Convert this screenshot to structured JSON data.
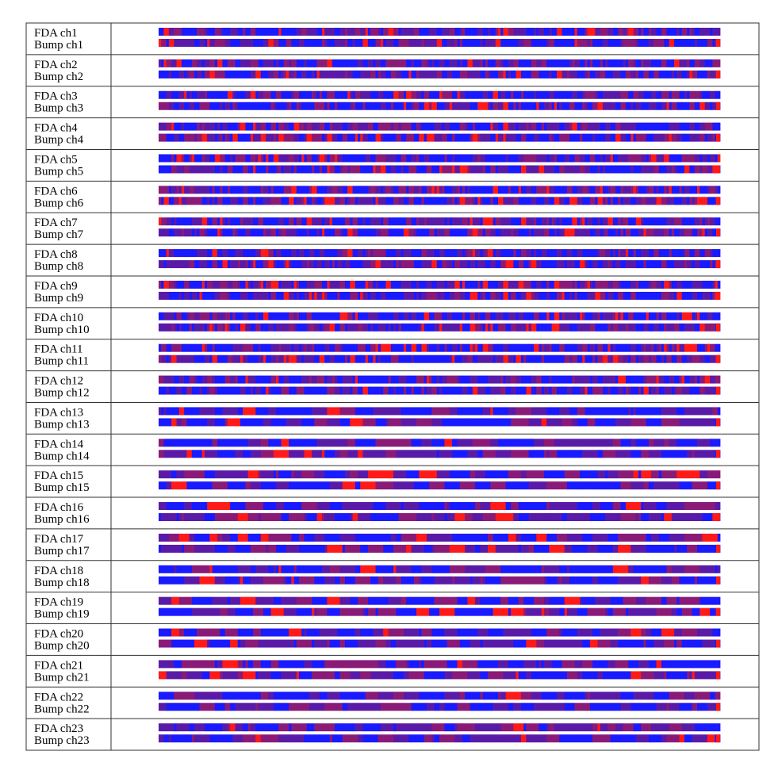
{
  "chart_data": {
    "type": "heatmap",
    "title": "",
    "xlabel": "",
    "ylabel": "",
    "colormap": [
      "#1a1aff",
      "#5a1aa8",
      "#8a1a78",
      "#ff1a1a"
    ],
    "colors": {
      "blue": "#1a1aff",
      "purple": "#5a1aa8",
      "magenta": "#8a1a78",
      "red": "#ff1a1a",
      "border": "#333333",
      "text": "#000000"
    },
    "groups": [
      {
        "fda_label": "FDA ch1",
        "bump_label": "Bump ch1"
      },
      {
        "fda_label": "FDA ch2",
        "bump_label": "Bump ch2"
      },
      {
        "fda_label": "FDA ch3",
        "bump_label": "Bump ch3"
      },
      {
        "fda_label": "FDA ch4",
        "bump_label": "Bump ch4"
      },
      {
        "fda_label": "FDA ch5",
        "bump_label": "Bump ch5"
      },
      {
        "fda_label": "FDA ch6",
        "bump_label": "Bump ch6"
      },
      {
        "fda_label": "FDA ch7",
        "bump_label": "Bump ch7"
      },
      {
        "fda_label": "FDA ch8",
        "bump_label": "Bump ch8"
      },
      {
        "fda_label": "FDA ch9",
        "bump_label": "Bump ch9"
      },
      {
        "fda_label": "FDA ch10",
        "bump_label": "Bump ch10"
      },
      {
        "fda_label": "FDA ch11",
        "bump_label": "Bump ch11"
      },
      {
        "fda_label": "FDA ch12",
        "bump_label": "Bump ch12"
      },
      {
        "fda_label": "FDA ch13",
        "bump_label": "Bump ch13"
      },
      {
        "fda_label": "FDA ch14",
        "bump_label": "Bump ch14"
      },
      {
        "fda_label": "FDA ch15",
        "bump_label": "Bump ch15"
      },
      {
        "fda_label": "FDA ch16",
        "bump_label": "Bump ch16"
      },
      {
        "fda_label": "FDA ch17",
        "bump_label": "Bump ch17"
      },
      {
        "fda_label": "FDA ch18",
        "bump_label": "Bump ch18"
      },
      {
        "fda_label": "FDA ch19",
        "bump_label": "Bump ch19"
      },
      {
        "fda_label": "FDA ch20",
        "bump_label": "Bump ch20"
      },
      {
        "fda_label": "FDA ch21",
        "bump_label": "Bump ch21"
      },
      {
        "fda_label": "FDA ch22",
        "bump_label": "Bump ch22"
      },
      {
        "fda_label": "FDA ch23",
        "bump_label": "Bump ch23"
      }
    ]
  }
}
